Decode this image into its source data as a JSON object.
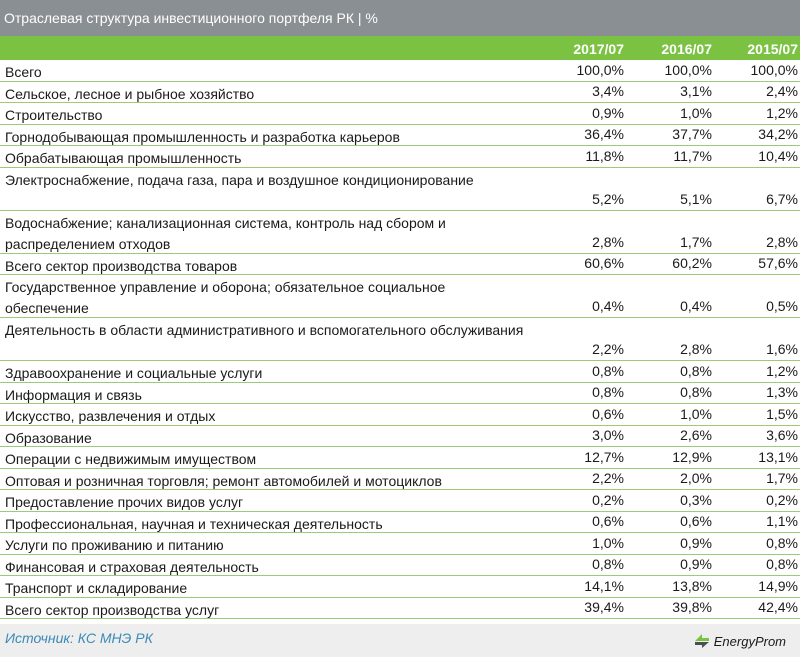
{
  "title": "Отраслевая структура инвестиционного портфеля РК | %",
  "headers": [
    "2017/07",
    "2016/07",
    "2015/07"
  ],
  "rows": [
    {
      "label": "Всего",
      "v": [
        "100,0%",
        "100,0%",
        "100,0%"
      ]
    },
    {
      "label": "Сельское, лесное и рыбное хозяйство",
      "v": [
        "3,4%",
        "3,1%",
        "2,4%"
      ]
    },
    {
      "label": "Строительство",
      "v": [
        "0,9%",
        "1,0%",
        "1,2%"
      ]
    },
    {
      "label": "Горнодобывающая промышленность и разработка карьеров",
      "v": [
        "36,4%",
        "37,7%",
        "34,2%"
      ]
    },
    {
      "label": "Обрабатывающая промышленность",
      "v": [
        "11,8%",
        "11,7%",
        "10,4%"
      ]
    },
    {
      "label": "Электроснабжение, подача газа, пара и воздушное кондиционирование",
      "v": [
        "5,2%",
        "5,1%",
        "6,7%"
      ]
    },
    {
      "label": "Водоснабжение; канализационная система, контроль над сбором и распределением отходов",
      "v": [
        "2,8%",
        "1,7%",
        "2,8%"
      ]
    },
    {
      "label": "Всего сектор производства товаров",
      "v": [
        "60,6%",
        "60,2%",
        "57,6%"
      ]
    },
    {
      "label": "Государственное управление и оборона; обязательное  социальное обеспечение",
      "v": [
        "0,4%",
        "0,4%",
        "0,5%"
      ]
    },
    {
      "label": "Деятельность в области административного и вспомогательного обслуживания",
      "v": [
        "2,2%",
        "2,8%",
        "1,6%"
      ]
    },
    {
      "label": "Здравоохранение и социальные услуги",
      "v": [
        "0,8%",
        "0,8%",
        "1,2%"
      ]
    },
    {
      "label": "Информация и связь",
      "v": [
        "0,8%",
        "0,8%",
        "1,3%"
      ]
    },
    {
      "label": "Искусство, развлечения и отдых",
      "v": [
        "0,6%",
        "1,0%",
        "1,5%"
      ]
    },
    {
      "label": "Образование",
      "v": [
        "3,0%",
        "2,6%",
        "3,6%"
      ]
    },
    {
      "label": "Операции с недвижимым имуществом",
      "v": [
        "12,7%",
        "12,9%",
        "13,1%"
      ]
    },
    {
      "label": "Оптовая и розничная торговля; ремонт автомобилей и мотоциклов",
      "v": [
        "2,2%",
        "2,0%",
        "1,7%"
      ]
    },
    {
      "label": "Предоставление прочих видов услуг",
      "v": [
        "0,2%",
        "0,3%",
        "0,2%"
      ]
    },
    {
      "label": "Профессиональная, научная и техническая деятельность",
      "v": [
        "0,6%",
        "0,6%",
        "1,1%"
      ]
    },
    {
      "label": "Услуги по проживанию и питанию",
      "v": [
        "1,0%",
        "0,9%",
        "0,8%"
      ]
    },
    {
      "label": "Финансовая и страховая деятельность",
      "v": [
        "0,8%",
        "0,9%",
        "0,8%"
      ]
    },
    {
      "label": "Транспорт и складирование",
      "v": [
        "14,1%",
        "13,8%",
        "14,9%"
      ]
    },
    {
      "label": "Всего сектор производства услуг",
      "v": [
        "39,4%",
        "39,8%",
        "42,4%"
      ]
    }
  ],
  "footer": {
    "source": "Источник: КС МНЭ РК",
    "logo_text": "EnergyProm"
  },
  "colors": {
    "title_bg": "#8a8f93",
    "header_bg": "#7cc242",
    "row_border": "#9aca7a",
    "source_text": "#3b8bb5"
  }
}
